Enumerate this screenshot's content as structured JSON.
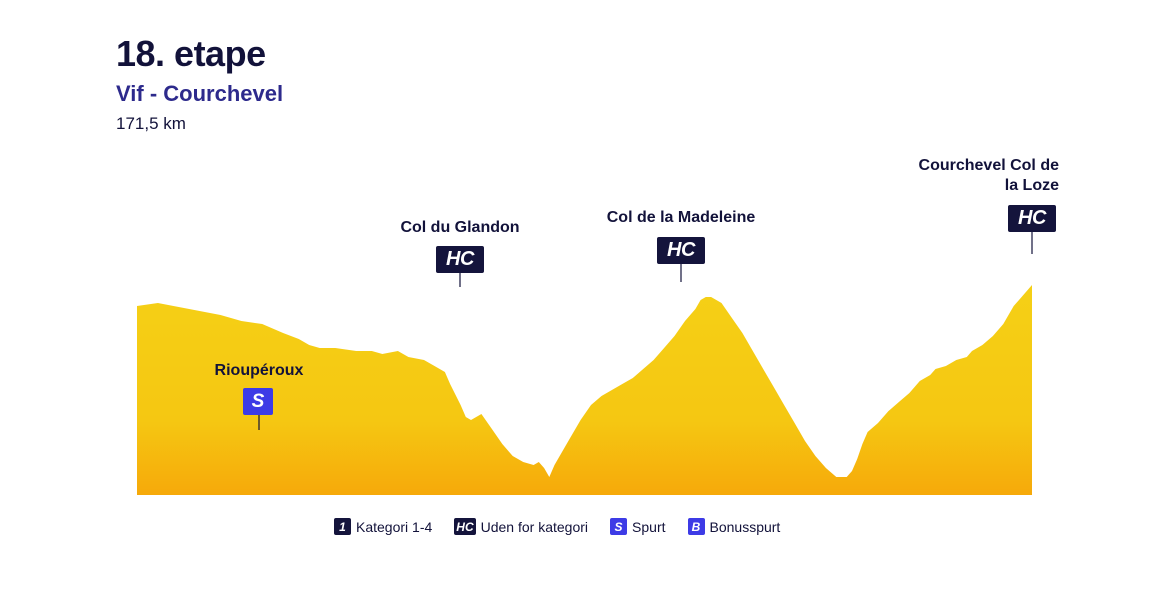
{
  "stage": {
    "title": "18. etape",
    "route": "Vif - Courchevel",
    "distance": "171,5 km"
  },
  "colors": {
    "profile_top": "#f5d016",
    "profile_bottom": "#f6a90a",
    "hc_badge": "#14143c",
    "sprint_badge": "#3d3be6",
    "category_badge": "#14143c",
    "bonus_badge": "#3d3be6"
  },
  "profile": {
    "points": [
      [
        0,
        22
      ],
      [
        4,
        21
      ],
      [
        7,
        22
      ],
      [
        10,
        23
      ],
      [
        13,
        24
      ],
      [
        16,
        25
      ],
      [
        20,
        27
      ],
      [
        24,
        28
      ],
      [
        28,
        31
      ],
      [
        31,
        33
      ],
      [
        33,
        35
      ],
      [
        35,
        36
      ],
      [
        38,
        36
      ],
      [
        42,
        37
      ],
      [
        45,
        37
      ],
      [
        47,
        38
      ],
      [
        50,
        37
      ],
      [
        52,
        39
      ],
      [
        55,
        40
      ],
      [
        57,
        42
      ],
      [
        59,
        44
      ],
      [
        60,
        48
      ],
      [
        62,
        55
      ],
      [
        63,
        59
      ],
      [
        64,
        60
      ],
      [
        66,
        58
      ],
      [
        68,
        63
      ],
      [
        70,
        68
      ],
      [
        72,
        72
      ],
      [
        74,
        74
      ],
      [
        76,
        75
      ],
      [
        77,
        74
      ],
      [
        78,
        76
      ],
      [
        79,
        79
      ],
      [
        80,
        75
      ],
      [
        81,
        72
      ],
      [
        83,
        66
      ],
      [
        85,
        60
      ],
      [
        87,
        55
      ],
      [
        89,
        52
      ],
      [
        91,
        50
      ],
      [
        93,
        48
      ],
      [
        95,
        46
      ],
      [
        97,
        43
      ],
      [
        99,
        40
      ],
      [
        101,
        36
      ],
      [
        103,
        32
      ],
      [
        105,
        27
      ],
      [
        107,
        23
      ],
      [
        108,
        20
      ],
      [
        109,
        19
      ],
      [
        110,
        19
      ],
      [
        112,
        21
      ],
      [
        114,
        26
      ],
      [
        116,
        31
      ],
      [
        118,
        37
      ],
      [
        120,
        43
      ],
      [
        122,
        49
      ],
      [
        124,
        55
      ],
      [
        126,
        61
      ],
      [
        128,
        67
      ],
      [
        130,
        72
      ],
      [
        132,
        76
      ],
      [
        134,
        79
      ],
      [
        136,
        79
      ],
      [
        137,
        77
      ],
      [
        138,
        73
      ],
      [
        139,
        68
      ],
      [
        140,
        64
      ],
      [
        142,
        61
      ],
      [
        144,
        57
      ],
      [
        146,
        54
      ],
      [
        148,
        51
      ],
      [
        150,
        47
      ],
      [
        152,
        45
      ],
      [
        153,
        43
      ],
      [
        155,
        42
      ],
      [
        157,
        40
      ],
      [
        159,
        39
      ],
      [
        160,
        37
      ],
      [
        162,
        35
      ],
      [
        164,
        32
      ],
      [
        166,
        28
      ],
      [
        168,
        22
      ],
      [
        169,
        20
      ],
      [
        170,
        18
      ],
      [
        171,
        16
      ],
      [
        171.5,
        15
      ]
    ],
    "climbs": [
      {
        "name": "Rioupéroux",
        "km": 33,
        "elev": 35,
        "category": "S"
      },
      {
        "name": "Col du Glandon",
        "km": 80,
        "elev": 75,
        "category": "HC"
      },
      {
        "name": "Col de la Madeleine",
        "km": 137,
        "elev": 77,
        "category": "HC"
      },
      {
        "name": "Courchevel Col de la Loze",
        "km": 171.5,
        "elev": 15,
        "category": "HC"
      }
    ]
  },
  "climb_labels": {
    "rioupéroux": "Rioupéroux",
    "glandon": "Col du Glandon",
    "madeleine": "Col de la Madeleine",
    "loze": "Courchevel Col de la Loze"
  },
  "badges": {
    "sprint": "S",
    "hc": "HC"
  },
  "legend": {
    "items": [
      {
        "chip": "1",
        "label": "Kategori 1-4"
      },
      {
        "chip": "HC",
        "label": "Uden for kategori"
      },
      {
        "chip": "S",
        "label": "Spurt"
      },
      {
        "chip": "B",
        "label": "Bonusspurt"
      }
    ]
  }
}
